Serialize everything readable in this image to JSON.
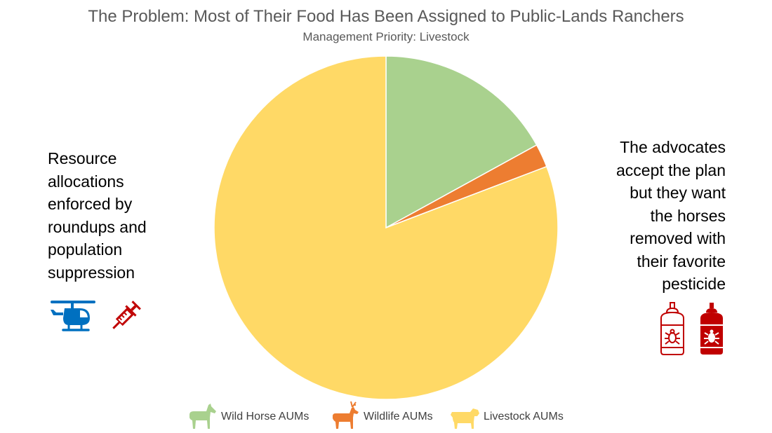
{
  "chart_data": {
    "type": "pie",
    "title": "The Problem: Most of Their Food Has Been Assigned to Public-Lands Ranchers",
    "subtitle": "Management Priority: Livestock",
    "categories": [
      "Wild Horse AUMs",
      "Wildlife AUMs",
      "Livestock AUMs"
    ],
    "values": [
      17.0,
      2.2,
      80.8
    ],
    "colors": [
      "#A9D18E",
      "#ED7D31",
      "#FFD966"
    ],
    "legend": "bottom"
  },
  "annotations": {
    "left": [
      "Resource",
      "allocations",
      "enforced by",
      "roundups and",
      "population",
      "suppression"
    ],
    "right": [
      "The advocates",
      "accept the plan",
      "but they want",
      "the horses",
      "removed with",
      "their favorite",
      "pesticide"
    ]
  },
  "icons": {
    "helicopter": "helicopter-icon",
    "syringe": "syringe-icon",
    "pesticide_outline": "pesticide-spray-can-outline-icon",
    "pesticide_filled": "pesticide-spray-can-filled-icon",
    "horse": "horse-icon",
    "deer": "deer-icon",
    "cow": "cow-icon"
  },
  "icon_colors": {
    "helicopter": "#0070C0",
    "syringe": "#C00000",
    "pesticide": "#C00000"
  }
}
